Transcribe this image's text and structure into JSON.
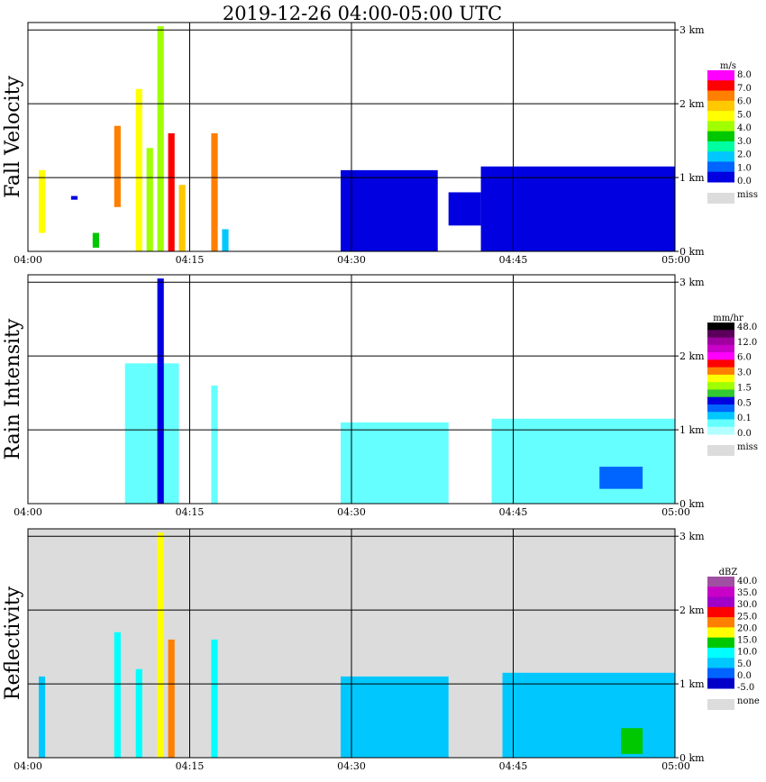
{
  "title": "2019-12-26   04:00-05:00 UTC",
  "colors": {
    "missing": "#dcdcdc",
    "grid": "#000000",
    "background": "#ffffff"
  },
  "chart_data": [
    {
      "type": "heatmap",
      "panel": "fall-velocity",
      "ylabel": "Fall Velocity",
      "x_tick_labels": [
        "04:00",
        "04:15",
        "04:30",
        "04:45",
        "05:00"
      ],
      "y_tick_labels": [
        "0 km",
        "1 km",
        "2 km",
        "3 km"
      ],
      "xlim": [
        "04:00",
        "05:00"
      ],
      "ylim_km": [
        0,
        3.1
      ],
      "grid": true,
      "panel_background": "white",
      "legend": {
        "unit": "m/s",
        "labels": [
          "8.0",
          "7.0",
          "6.0",
          "5.0",
          "4.0",
          "3.0",
          "2.0",
          "1.0",
          "0.0"
        ],
        "colors": [
          "#ff00ff",
          "#ff0000",
          "#ff7f00",
          "#ffc800",
          "#ffff00",
          "#a0ff00",
          "#00c800",
          "#00ffa0",
          "#00c8ff",
          "#0064ff",
          "#0000e0"
        ],
        "missing_label": "miss"
      },
      "cells": [
        {
          "t": "04:01",
          "h": [
            0.25,
            1.1
          ],
          "color": "#ffff00"
        },
        {
          "t": "04:04",
          "h": [
            0.7,
            0.75
          ],
          "color": "#0000e0"
        },
        {
          "t": "04:06",
          "h": [
            0.05,
            0.25
          ],
          "color": "#00c800"
        },
        {
          "t": "04:08",
          "h": [
            0.6,
            1.7
          ],
          "color": "#ff7f00"
        },
        {
          "t": "04:10",
          "h": [
            0.0,
            2.2
          ],
          "color": "#ffff00"
        },
        {
          "t": "04:11",
          "h": [
            0.0,
            1.4
          ],
          "color": "#a0ff00"
        },
        {
          "t": "04:12",
          "h": [
            0.0,
            3.05
          ],
          "color": "#a0ff00"
        },
        {
          "t": "04:13",
          "h": [
            0.0,
            1.6
          ],
          "color": "#ff0000"
        },
        {
          "t": "04:14",
          "h": [
            0.0,
            0.9
          ],
          "color": "#ffc800"
        },
        {
          "t": "04:17",
          "h": [
            0.0,
            1.6
          ],
          "color": "#ff7f00"
        },
        {
          "t": "04:18",
          "h": [
            0.0,
            0.3
          ],
          "color": "#00c8ff"
        },
        {
          "t": "04:29-04:38",
          "h": [
            0.0,
            1.1
          ],
          "color": "#0000e0"
        },
        {
          "t": "04:39-04:42",
          "h": [
            0.35,
            0.8
          ],
          "color": "#0000e0"
        },
        {
          "t": "04:42-05:00",
          "h": [
            0.0,
            1.15
          ],
          "color": "#0000e0"
        }
      ]
    },
    {
      "type": "heatmap",
      "panel": "rain-intensity",
      "ylabel": "Rain Intensity",
      "x_tick_labels": [
        "04:00",
        "04:15",
        "04:30",
        "04:45",
        "05:00"
      ],
      "y_tick_labels": [
        "0 km",
        "1 km",
        "2 km",
        "3 km"
      ],
      "xlim": [
        "04:00",
        "05:00"
      ],
      "ylim_km": [
        0,
        3.1
      ],
      "grid": true,
      "panel_background": "white",
      "legend": {
        "unit": "mm/hr",
        "labels": [
          "48.0",
          "12.0",
          "6.0",
          "3.0",
          "1.5",
          "0.5",
          "0.1",
          "0.0"
        ],
        "colors": [
          "#000000",
          "#5a005a",
          "#a000a0",
          "#c800c8",
          "#ff00ff",
          "#ff0000",
          "#ff7f00",
          "#ffff00",
          "#a0ff00",
          "#32c832",
          "#0000e0",
          "#0064ff",
          "#00c8ff",
          "#66ffff",
          "#b4ffff"
        ],
        "missing_label": "miss"
      },
      "cells": [
        {
          "t": "04:09-04:14",
          "h": [
            0.0,
            1.9
          ],
          "color": "#66ffff"
        },
        {
          "t": "04:12",
          "h": [
            0.0,
            3.05
          ],
          "color": "#0000e0"
        },
        {
          "t": "04:17",
          "h": [
            0.0,
            1.6
          ],
          "color": "#66ffff"
        },
        {
          "t": "04:29-04:39",
          "h": [
            0.0,
            1.1
          ],
          "color": "#66ffff"
        },
        {
          "t": "04:43-05:00",
          "h": [
            0.0,
            1.15
          ],
          "color": "#66ffff"
        },
        {
          "t": "04:53-04:57",
          "h": [
            0.2,
            0.5
          ],
          "color": "#0064ff"
        }
      ]
    },
    {
      "type": "heatmap",
      "panel": "reflectivity",
      "ylabel": "Reflectivity",
      "x_tick_labels": [
        "04:00",
        "04:15",
        "04:30",
        "04:45",
        "05:00"
      ],
      "y_tick_labels": [
        "0 km",
        "1 km",
        "2 km",
        "3 km"
      ],
      "xlim": [
        "04:00",
        "05:00"
      ],
      "ylim_km": [
        0,
        3.1
      ],
      "grid": true,
      "panel_background": "#dcdcdc",
      "legend": {
        "unit": "dBZ",
        "labels": [
          "40.0",
          "35.0",
          "30.0",
          "25.0",
          "20.0",
          "15.0",
          "10.0",
          "5.0",
          "0.0",
          "-5.0"
        ],
        "colors": [
          "#a050a0",
          "#c800c8",
          "#a000c8",
          "#ff0000",
          "#ff7f00",
          "#ffff00",
          "#00c800",
          "#00ffff",
          "#00c8ff",
          "#0064ff",
          "#0000c8"
        ],
        "missing_label": "none"
      },
      "cells": [
        {
          "t": "04:01",
          "h": [
            0.0,
            1.1
          ],
          "color": "#00c8ff"
        },
        {
          "t": "04:08",
          "h": [
            0.0,
            1.7
          ],
          "color": "#00ffff"
        },
        {
          "t": "04:10",
          "h": [
            0.0,
            1.2
          ],
          "color": "#00ffff"
        },
        {
          "t": "04:12",
          "h": [
            0.0,
            3.05
          ],
          "color": "#ffff00"
        },
        {
          "t": "04:13",
          "h": [
            0.0,
            1.6
          ],
          "color": "#ff7f00"
        },
        {
          "t": "04:17",
          "h": [
            0.0,
            1.6
          ],
          "color": "#00ffff"
        },
        {
          "t": "04:29-04:39",
          "h": [
            0.0,
            1.1
          ],
          "color": "#00c8ff"
        },
        {
          "t": "04:44-05:00",
          "h": [
            0.0,
            1.15
          ],
          "color": "#00c8ff"
        },
        {
          "t": "04:55-04:57",
          "h": [
            0.05,
            0.4
          ],
          "color": "#00c800"
        }
      ]
    }
  ]
}
